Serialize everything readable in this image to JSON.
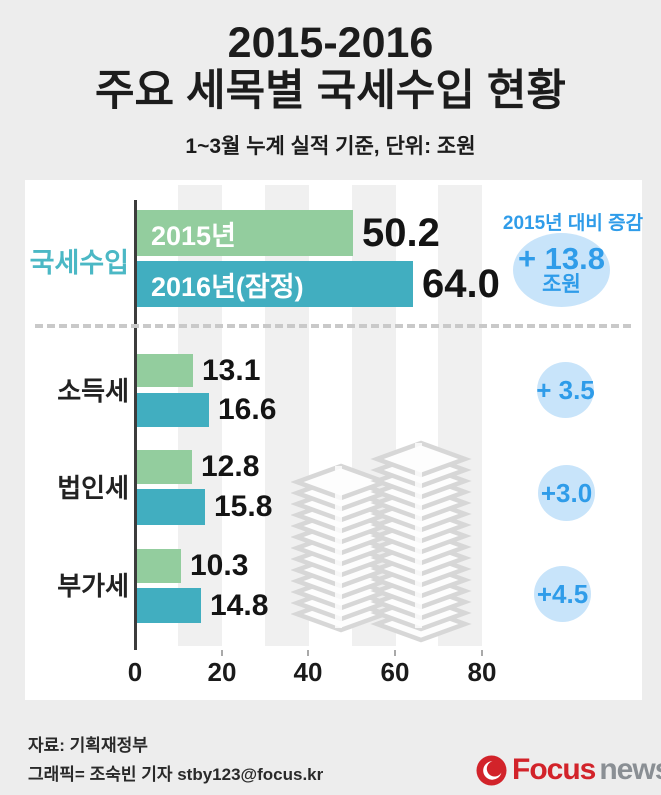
{
  "header": {
    "title_line1": "2015-2016",
    "title_line2": "주요 세목별 국세수입 현황",
    "subtitle": "1~3월 누계 실적 기준, 단위: 조원"
  },
  "chart_data": {
    "type": "bar",
    "orientation": "horizontal",
    "title": "2015-2016 주요 세목별 국세수입 현황",
    "subtitle": "1~3월 누계 실적 기준, 단위: 조원",
    "unit": "조원",
    "categories": [
      "국세수입",
      "소득세",
      "법인세",
      "부가세"
    ],
    "series": [
      {
        "name": "2015년",
        "values": [
          50.2,
          13.1,
          12.8,
          10.3
        ]
      },
      {
        "name": "2016년(잠정)",
        "values": [
          64.0,
          16.6,
          15.8,
          14.8
        ]
      }
    ],
    "diff_header": "2015년 대비 증감",
    "diffs": [
      "+ 13.8",
      "+ 3.5",
      "+3.0",
      "+4.5"
    ],
    "xlim": [
      0,
      80
    ],
    "x_ticks": [
      0,
      20,
      40,
      60,
      80
    ],
    "grid": "vertical-stripes",
    "legend_position": "inside-bars",
    "colors": {
      "bar_2015": "#93cd9e",
      "bar_2016": "#41aec0",
      "diff_circle_fill": "#c8e4fa",
      "diff_text": "#2f9ce9",
      "category_main": "#4bb8c5"
    }
  },
  "main_group": {
    "category": "국세수입",
    "bar1_label": "2015년",
    "bar1_value_label": "50.2",
    "v2015": 50.2,
    "bar2_label": "2016년(잠정)",
    "bar2_value_label": "64.0",
    "v2016": 64.0,
    "diff_header": "2015년 대비 증감",
    "diff_value": "+ 13.8",
    "diff_unit": "조원"
  },
  "rows": [
    {
      "category": "소득세",
      "v2015": 13.1,
      "v2016": 16.6,
      "v2015_label": "13.1",
      "v2016_label": "16.6",
      "diff": "+ 3.5"
    },
    {
      "category": "법인세",
      "v2015": 12.8,
      "v2016": 15.8,
      "v2015_label": "12.8",
      "v2016_label": "15.8",
      "diff": "+3.0"
    },
    {
      "category": "부가세",
      "v2015": 10.3,
      "v2016": 14.8,
      "v2015_label": "10.3",
      "v2016_label": "14.8",
      "diff": "+4.5"
    }
  ],
  "axis": {
    "ticks": [
      "0",
      "20",
      "40",
      "60",
      "80"
    ]
  },
  "footer": {
    "source": "자료: 기획재정부",
    "credit": "그래픽= 조숙빈 기자 stby123@focus.kr",
    "logo_focus": "Focus",
    "logo_news": "news"
  }
}
